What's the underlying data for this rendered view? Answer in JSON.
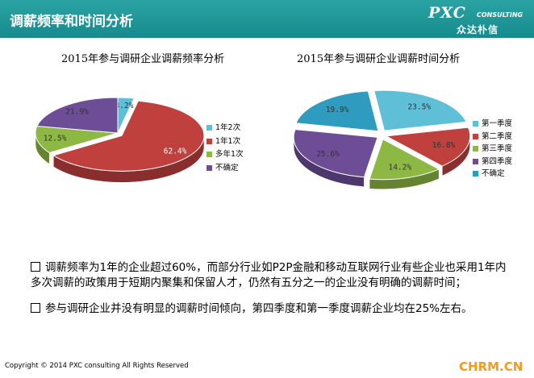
{
  "header": {
    "title": "调薪频率和时间分析",
    "logo": "PXC CONSULTING 众达朴信"
  },
  "charts": [
    {
      "title": "2015年参与调研企业调薪频率分析"
    },
    {
      "title": "2015年参与调研企业调薪时间分析"
    }
  ],
  "chart_data": [
    {
      "type": "pie",
      "title": "2015年参与调研企业调薪频率分析",
      "categories": [
        "1年2次",
        "1年1次",
        "多年1次",
        "不确定"
      ],
      "values": [
        3.2,
        62.4,
        12.5,
        21.9
      ],
      "labels": [
        "3.2%",
        "62.4%",
        "12.5%",
        "21.9%"
      ],
      "colors": [
        "#5fbfd6",
        "#c0403e",
        "#8db843",
        "#6d4d96"
      ],
      "legend": "right"
    },
    {
      "type": "pie",
      "title": "2015年参与调研企业调薪时间分析",
      "categories": [
        "第一季度",
        "第二季度",
        "第三季度",
        "第四季度",
        "不确定"
      ],
      "values": [
        23.5,
        16.8,
        14.2,
        25.6,
        19.9
      ],
      "labels": [
        "23.5%",
        "16.8%",
        "14.2%",
        "25.6%",
        "19.9%"
      ],
      "colors": [
        "#5fbfd6",
        "#c0403e",
        "#8db843",
        "#6d4d96",
        "#2f9cbf"
      ],
      "legend": "right"
    }
  ],
  "text": {
    "p1": "调薪频率为1年的企业超过60%，而部分行业如P2P金融和移动互联网行业有些企业也采用1年内多次调薪的政策用于短期内聚集和保留人才，仍然有五分之一的企业没有明确的调薪时间；",
    "p2": "参与调研企业并没有明显的调薪时间倾向，第四季度和第一季度调薪企业均在25%左右。"
  },
  "footer": "Copyright © 2014 PXC consulting All Rights Reserved",
  "watermark": "CHRM.CN"
}
